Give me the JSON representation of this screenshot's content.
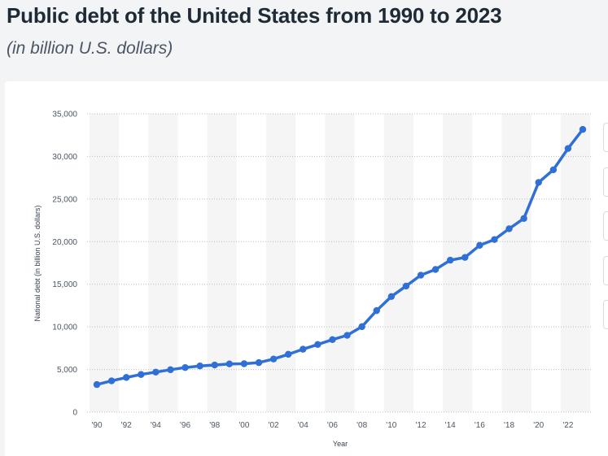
{
  "header": {
    "title": "Public debt of the United States from 1990 to 2023",
    "subtitle": "(in billion U.S. dollars)"
  },
  "colors": {
    "line": "#2f6fd6",
    "band": "#f5f5f5",
    "grid": "#b8bcc2"
  },
  "chart_data": {
    "type": "line",
    "xlabel": "Year",
    "ylabel": "National debt (in billion U.S. dollars)",
    "ylim": [
      0,
      35000
    ],
    "yticks": [
      0,
      5000,
      10000,
      15000,
      20000,
      25000,
      30000,
      35000
    ],
    "ytick_labels": [
      "0",
      "5,000",
      "10,000",
      "15,000",
      "20,000",
      "25,000",
      "30,000",
      "35,000"
    ],
    "grid": "horizontal dotted",
    "x_tick_years": [
      1990,
      1992,
      1994,
      1996,
      1998,
      2000,
      2002,
      2004,
      2006,
      2008,
      2010,
      2012,
      2014,
      2016,
      2018,
      2020,
      2022
    ],
    "x_tick_labels": [
      "'90",
      "'92",
      "'94",
      "'96",
      "'98",
      "'00",
      "'02",
      "'04",
      "'06",
      "'08",
      "'10",
      "'12",
      "'14",
      "'16",
      "'18",
      "'20",
      "'22"
    ],
    "x": [
      1990,
      1991,
      1992,
      1993,
      1994,
      1995,
      1996,
      1997,
      1998,
      1999,
      2000,
      2001,
      2002,
      2003,
      2004,
      2005,
      2006,
      2007,
      2008,
      2009,
      2010,
      2011,
      2012,
      2013,
      2014,
      2015,
      2016,
      2017,
      2018,
      2019,
      2020,
      2021,
      2022,
      2023
    ],
    "series": [
      {
        "values": [
          3233,
          3665,
          4065,
          4411,
          4693,
          4974,
          5225,
          5413,
          5526,
          5656,
          5674,
          5807,
          6228,
          6783,
          7379,
          7933,
          8507,
          9008,
          10025,
          11910,
          13562,
          14790,
          16066,
          16738,
          17824,
          18151,
          19573,
          20245,
          21516,
          22719,
          26945,
          28428,
          30929,
          33167
        ]
      }
    ]
  }
}
